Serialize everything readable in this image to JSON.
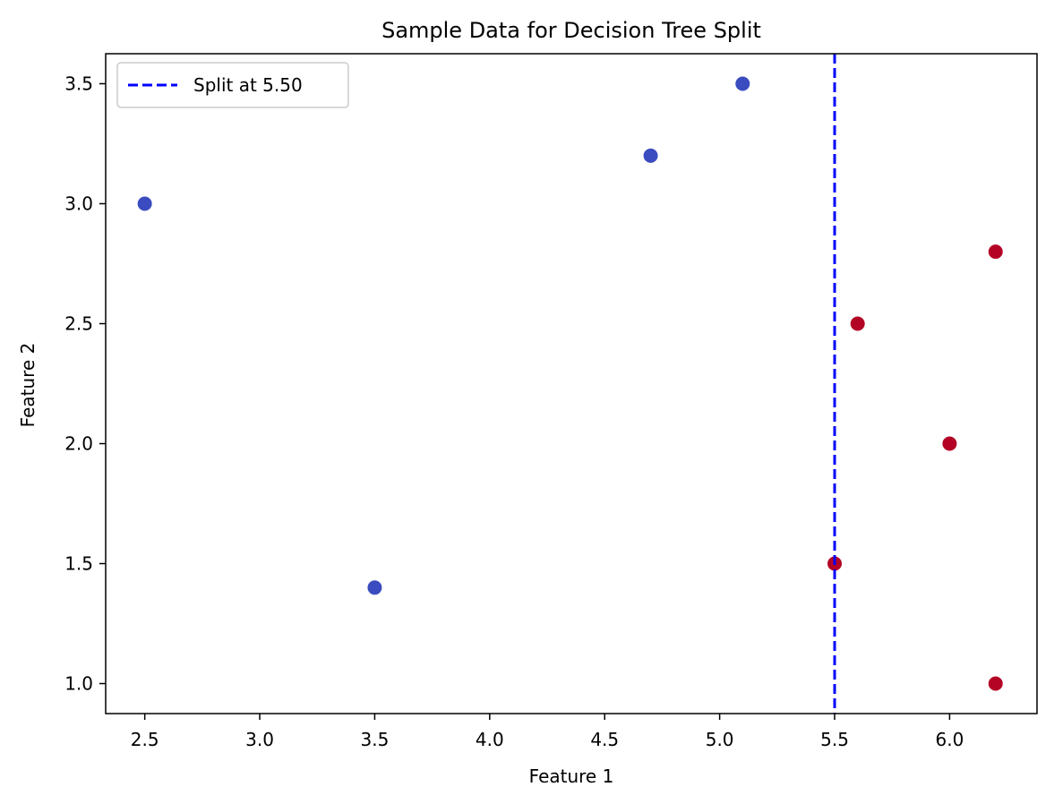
{
  "chart_data": {
    "type": "scatter",
    "title": "Sample Data for Decision Tree Split",
    "xlabel": "Feature 1",
    "ylabel": "Feature 2",
    "xlim": [
      2.33,
      6.38
    ],
    "ylim": [
      0.875,
      3.625
    ],
    "x_ticks": [
      2.5,
      3.0,
      3.5,
      4.0,
      4.5,
      5.0,
      5.5,
      6.0
    ],
    "y_ticks": [
      1.0,
      1.5,
      2.0,
      2.5,
      3.0,
      3.5
    ],
    "x_tick_labels": [
      "2.5",
      "3.0",
      "3.5",
      "4.0",
      "4.5",
      "5.0",
      "5.5",
      "6.0"
    ],
    "y_tick_labels": [
      "1.0",
      "1.5",
      "2.0",
      "2.5",
      "3.0",
      "3.5"
    ],
    "grid": false,
    "legend_position": "upper-left",
    "split": {
      "x": 5.5,
      "label": "Split at 5.50",
      "color": "#0000ff",
      "style": "dashed"
    },
    "classes": [
      {
        "color": "#3b4cc0",
        "points": [
          {
            "x": 2.5,
            "y": 3.0
          },
          {
            "x": 3.5,
            "y": 1.4
          },
          {
            "x": 4.7,
            "y": 3.2
          },
          {
            "x": 5.1,
            "y": 3.5
          }
        ]
      },
      {
        "color": "#b40426",
        "points": [
          {
            "x": 5.5,
            "y": 1.5
          },
          {
            "x": 5.6,
            "y": 2.5
          },
          {
            "x": 6.0,
            "y": 2.0
          },
          {
            "x": 6.2,
            "y": 2.8
          },
          {
            "x": 6.2,
            "y": 1.0
          }
        ]
      }
    ]
  }
}
